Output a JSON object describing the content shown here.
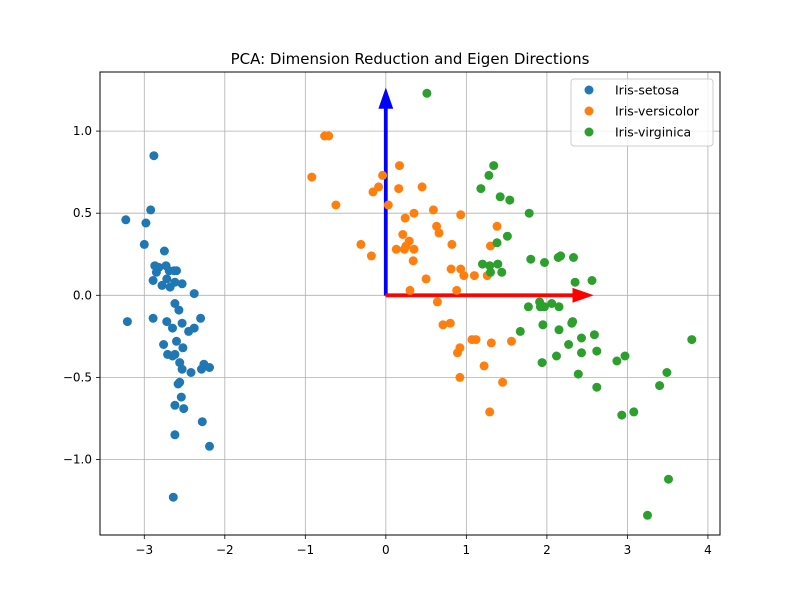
{
  "chart_data": {
    "type": "scatter",
    "title": "PCA: Dimension Reduction and Eigen Directions",
    "xlabel": "",
    "ylabel": "",
    "xlim": [
      -3.55,
      4.15
    ],
    "ylim": [
      -1.46,
      1.36
    ],
    "xticks": [
      -3,
      -2,
      -1,
      0,
      1,
      2,
      3,
      4
    ],
    "yticks": [
      -1.0,
      -0.5,
      0.0,
      0.5,
      1.0
    ],
    "xtick_labels": [
      "−3",
      "−2",
      "−1",
      "0",
      "1",
      "2",
      "3",
      "4"
    ],
    "ytick_labels": [
      "−1.0",
      "−0.5",
      "0.0",
      "0.5",
      "1.0"
    ],
    "grid": true,
    "legend_position": "top-right",
    "series": [
      {
        "name": "Iris-setosa",
        "color": "#1f77b4",
        "points": [
          [
            -2.88,
            0.85
          ],
          [
            -3.23,
            0.46
          ],
          [
            -2.98,
            0.44
          ],
          [
            -2.92,
            0.52
          ],
          [
            -3.0,
            0.31
          ],
          [
            -3.21,
            -0.16
          ],
          [
            -2.87,
            0.18
          ],
          [
            -2.82,
            0.17
          ],
          [
            -2.89,
            0.09
          ],
          [
            -2.78,
            0.06
          ],
          [
            -2.75,
            0.27
          ],
          [
            -2.73,
            0.18
          ],
          [
            -2.69,
            0.15
          ],
          [
            -2.63,
            0.15
          ],
          [
            -2.6,
            0.15
          ],
          [
            -2.85,
            0.14
          ],
          [
            -2.72,
            0.1
          ],
          [
            -2.62,
            0.08
          ],
          [
            -2.68,
            0.05
          ],
          [
            -2.53,
            0.07
          ],
          [
            -2.38,
            0.01
          ],
          [
            -2.89,
            -0.14
          ],
          [
            -2.72,
            -0.16
          ],
          [
            -2.62,
            -0.05
          ],
          [
            -2.57,
            -0.09
          ],
          [
            -2.53,
            -0.17
          ],
          [
            -2.45,
            -0.22
          ],
          [
            -2.3,
            -0.14
          ],
          [
            -2.38,
            -0.2
          ],
          [
            -2.65,
            -0.2
          ],
          [
            -2.6,
            -0.28
          ],
          [
            -2.76,
            -0.3
          ],
          [
            -2.71,
            -0.36
          ],
          [
            -2.65,
            -0.37
          ],
          [
            -2.62,
            -0.36
          ],
          [
            -2.52,
            -0.32
          ],
          [
            -2.56,
            -0.41
          ],
          [
            -2.53,
            -0.45
          ],
          [
            -2.42,
            -0.47
          ],
          [
            -2.29,
            -0.45
          ],
          [
            -2.26,
            -0.42
          ],
          [
            -2.19,
            -0.44
          ],
          [
            -2.56,
            -0.53
          ],
          [
            -2.58,
            -0.54
          ],
          [
            -2.54,
            -0.62
          ],
          [
            -2.62,
            -0.67
          ],
          [
            -2.51,
            -0.69
          ],
          [
            -2.28,
            -0.77
          ],
          [
            -2.62,
            -0.85
          ],
          [
            -2.19,
            -0.92
          ],
          [
            -2.64,
            -1.23
          ]
        ]
      },
      {
        "name": "Iris-versicolor",
        "color": "#ff7f0e",
        "points": [
          [
            -0.76,
            0.97
          ],
          [
            -0.71,
            0.97
          ],
          [
            -0.92,
            0.72
          ],
          [
            -0.62,
            0.55
          ],
          [
            -0.16,
            0.63
          ],
          [
            -0.04,
            0.73
          ],
          [
            0.17,
            0.79
          ],
          [
            0.16,
            0.65
          ],
          [
            -0.09,
            0.66
          ],
          [
            0.45,
            0.66
          ],
          [
            0.03,
            0.55
          ],
          [
            0.59,
            0.52
          ],
          [
            0.24,
            0.47
          ],
          [
            0.35,
            0.5
          ],
          [
            0.93,
            0.49
          ],
          [
            0.63,
            0.42
          ],
          [
            0.66,
            0.38
          ],
          [
            1.38,
            0.42
          ],
          [
            0.21,
            0.37
          ],
          [
            0.29,
            0.33
          ],
          [
            0.25,
            0.3
          ],
          [
            0.35,
            0.28
          ],
          [
            0.13,
            0.28
          ],
          [
            0.23,
            0.28
          ],
          [
            0.82,
            0.31
          ],
          [
            -0.31,
            0.31
          ],
          [
            -0.18,
            0.24
          ],
          [
            0.34,
            0.21
          ],
          [
            1.3,
            0.3
          ],
          [
            0.97,
            0.12
          ],
          [
            0.5,
            0.1
          ],
          [
            0.81,
            0.16
          ],
          [
            0.93,
            0.16
          ],
          [
            1.1,
            0.12
          ],
          [
            1.26,
            0.12
          ],
          [
            0.3,
            0.03
          ],
          [
            0.88,
            0.03
          ],
          [
            0.64,
            -0.04
          ],
          [
            1.07,
            -0.27
          ],
          [
            1.12,
            -0.27
          ],
          [
            0.71,
            -0.18
          ],
          [
            0.8,
            -0.17
          ],
          [
            0.92,
            -0.32
          ],
          [
            0.89,
            -0.35
          ],
          [
            1.31,
            -0.29
          ],
          [
            1.56,
            -0.28
          ],
          [
            1.22,
            -0.43
          ],
          [
            0.92,
            -0.5
          ],
          [
            1.45,
            -0.53
          ],
          [
            1.29,
            -0.71
          ]
        ]
      },
      {
        "name": "Iris-virginica",
        "color": "#2ca02c",
        "points": [
          [
            0.51,
            1.23
          ],
          [
            1.34,
            0.79
          ],
          [
            1.28,
            0.73
          ],
          [
            1.18,
            0.65
          ],
          [
            1.42,
            0.6
          ],
          [
            1.54,
            0.58
          ],
          [
            1.78,
            0.5
          ],
          [
            1.51,
            0.36
          ],
          [
            1.38,
            0.32
          ],
          [
            1.2,
            0.19
          ],
          [
            1.29,
            0.18
          ],
          [
            1.39,
            0.19
          ],
          [
            1.3,
            0.14
          ],
          [
            1.44,
            0.14
          ],
          [
            1.8,
            0.22
          ],
          [
            1.97,
            0.2
          ],
          [
            2.14,
            0.23
          ],
          [
            2.17,
            0.24
          ],
          [
            2.33,
            0.23
          ],
          [
            2.35,
            0.08
          ],
          [
            2.56,
            0.09
          ],
          [
            1.77,
            -0.07
          ],
          [
            1.91,
            -0.04
          ],
          [
            1.92,
            -0.07
          ],
          [
            2.15,
            -0.07
          ],
          [
            1.95,
            -0.18
          ],
          [
            2.32,
            -0.16
          ],
          [
            2.15,
            -0.21
          ],
          [
            1.67,
            -0.22
          ],
          [
            2.43,
            -0.26
          ],
          [
            2.59,
            -0.24
          ],
          [
            2.27,
            -0.3
          ],
          [
            2.12,
            -0.37
          ],
          [
            2.43,
            -0.35
          ],
          [
            2.62,
            -0.34
          ],
          [
            1.94,
            -0.41
          ],
          [
            2.39,
            -0.48
          ],
          [
            2.87,
            -0.4
          ],
          [
            2.97,
            -0.37
          ],
          [
            3.49,
            -0.47
          ],
          [
            3.8,
            -0.27
          ],
          [
            2.62,
            -0.56
          ],
          [
            3.4,
            -0.55
          ],
          [
            2.93,
            -0.73
          ],
          [
            3.08,
            -0.71
          ],
          [
            3.51,
            -1.12
          ],
          [
            3.25,
            -1.34
          ],
          [
            1.97,
            -0.07
          ],
          [
            2.06,
            -0.05
          ],
          [
            2.31,
            -0.17
          ]
        ]
      }
    ],
    "arrows": [
      {
        "color": "#0000ff",
        "from": [
          0,
          0
        ],
        "to": [
          0,
          1.26
        ]
      },
      {
        "color": "#ff0000",
        "from": [
          0,
          0
        ],
        "to": [
          2.57,
          0
        ]
      }
    ]
  }
}
